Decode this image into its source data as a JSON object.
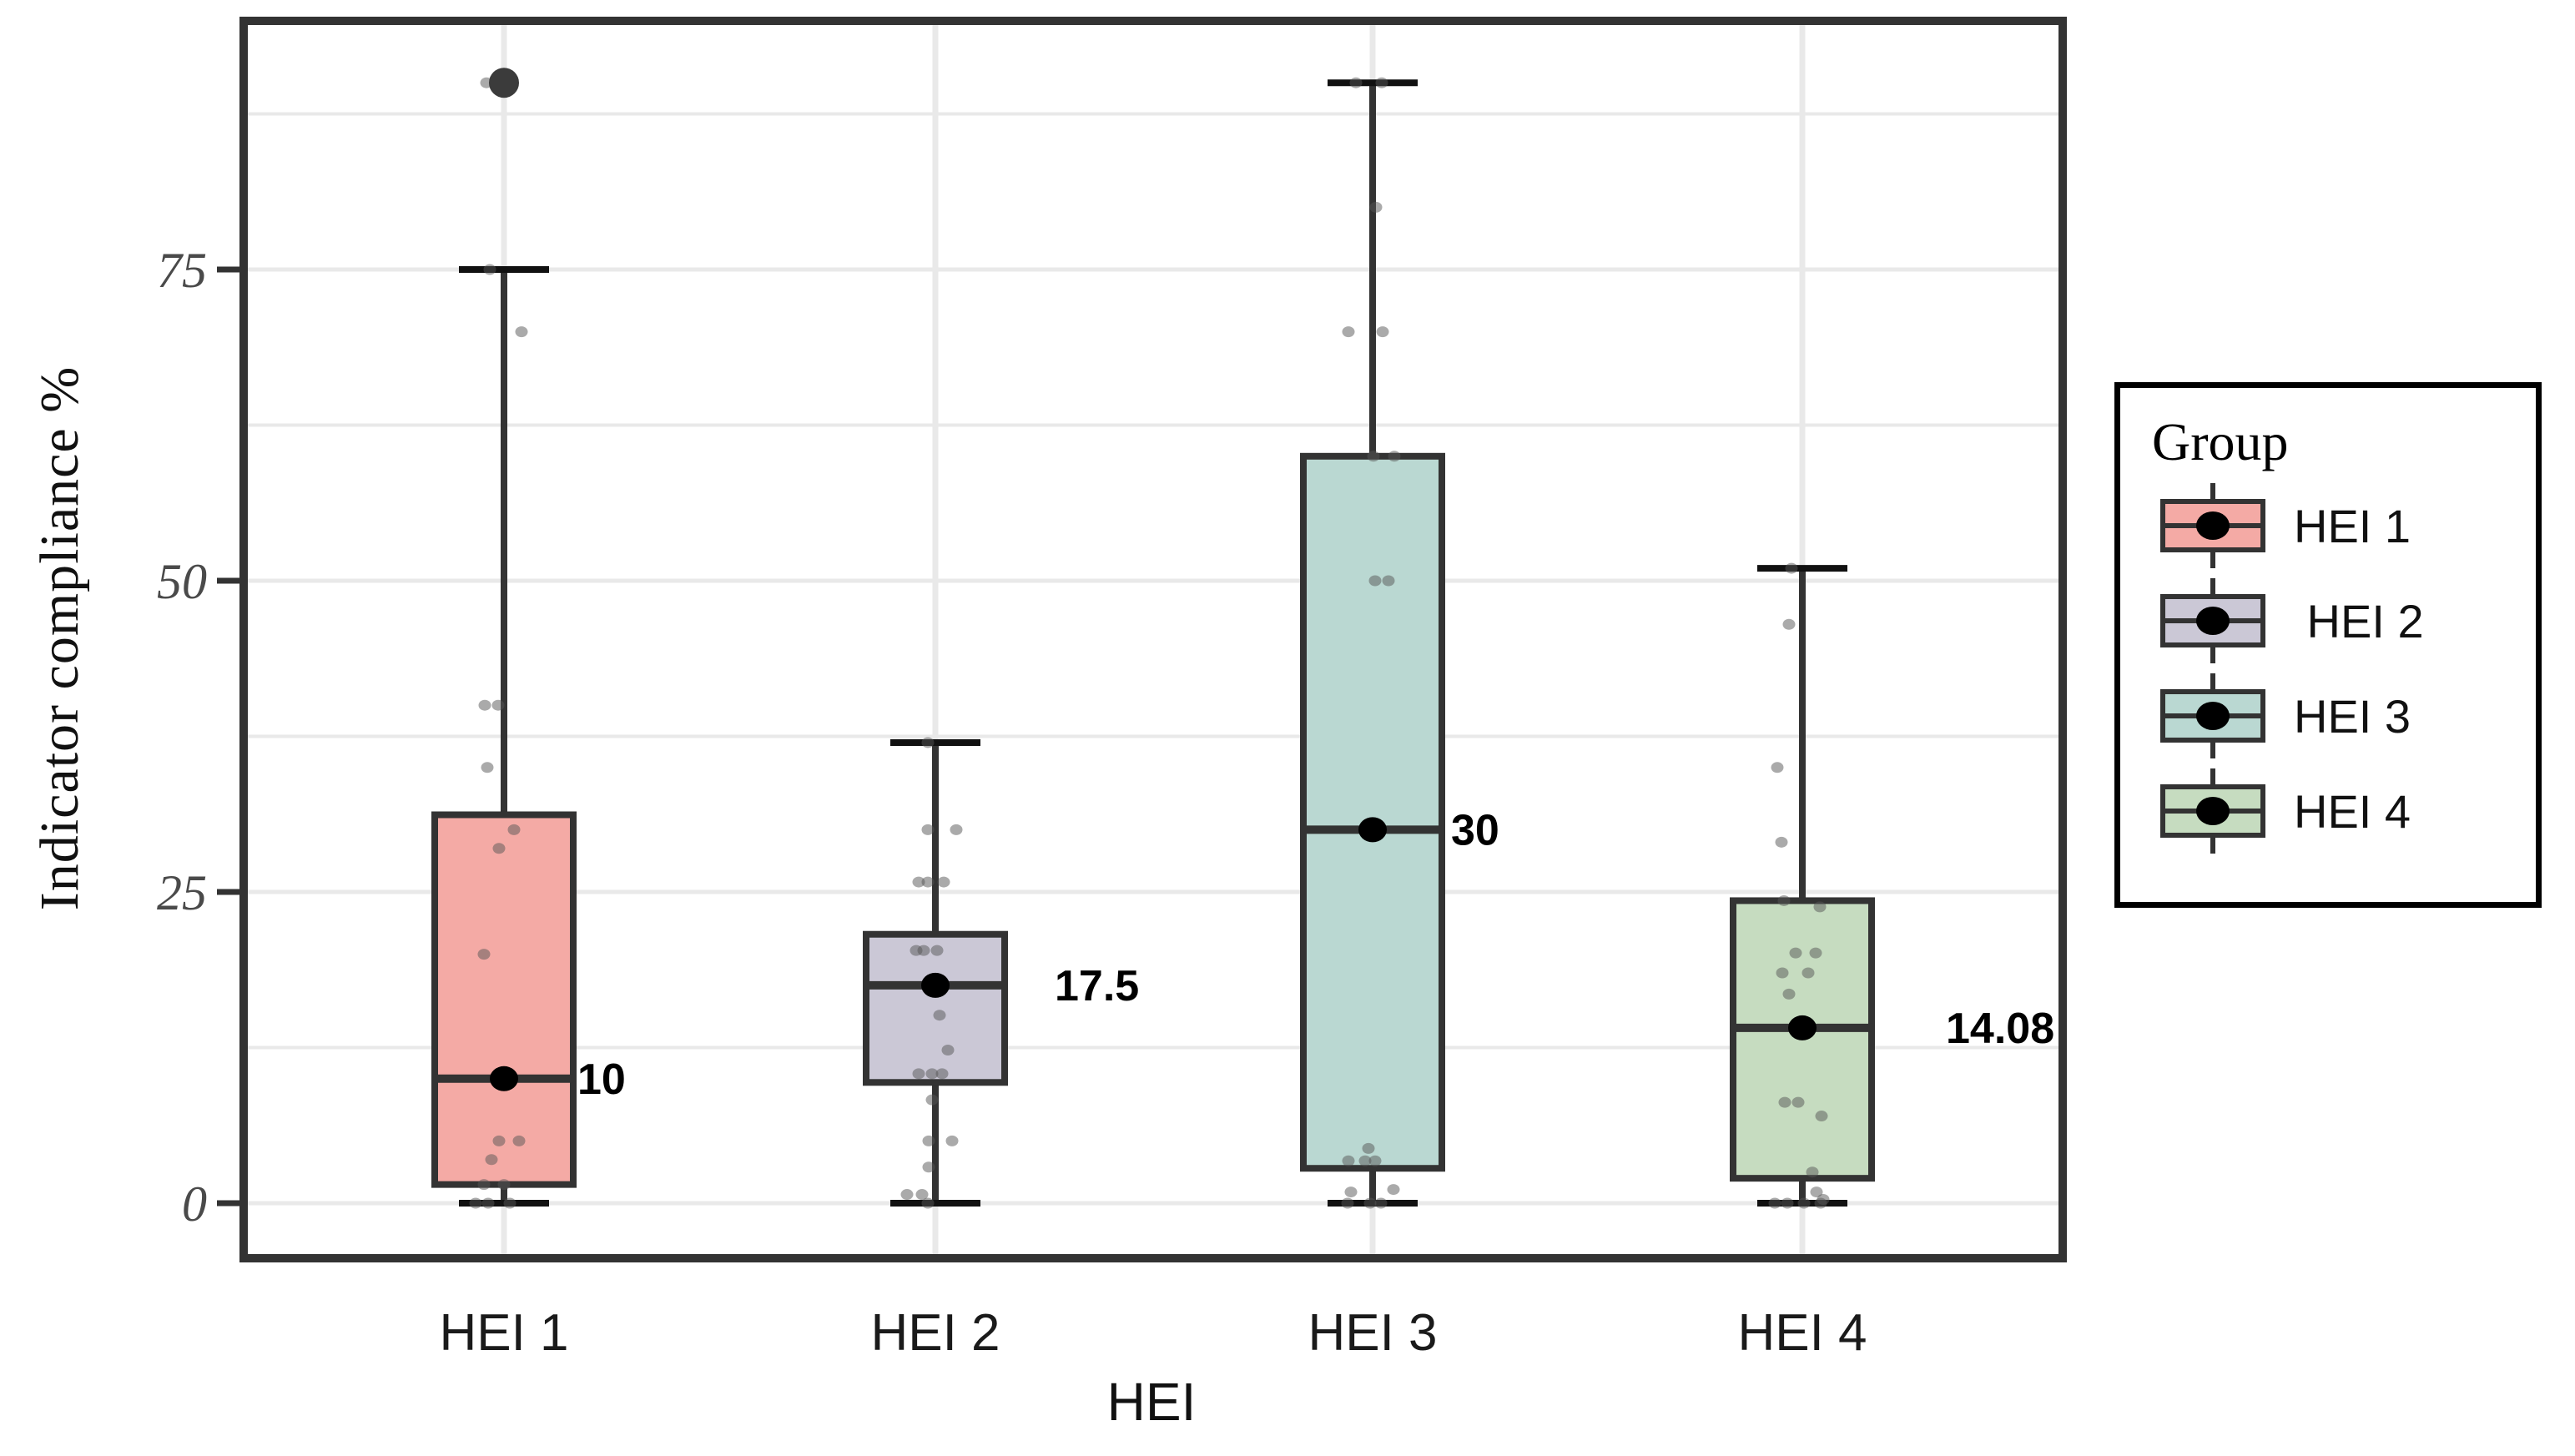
{
  "chart_data": {
    "type": "boxplot",
    "title": "",
    "xlabel": "HEI",
    "ylabel": "Indicator compliance %",
    "grid": true,
    "y_axis": {
      "ticks": [
        0,
        25,
        50,
        75
      ],
      "tick_labels": [
        "0",
        "25",
        "50",
        "75"
      ],
      "minor_gridlines": [
        12.5,
        37.5,
        62.5,
        87.5
      ],
      "range": [
        -5.2,
        95
      ]
    },
    "legend": {
      "title": "Group",
      "position": "right",
      "entries": [
        "HEI 1",
        " HEI 2",
        "HEI 3",
        "HEI 4"
      ]
    },
    "style": {
      "box_border": "#333333",
      "gridline": "#E9E9E9",
      "jitter_dot": "#555555",
      "median_dot": "#000000",
      "outlier_dot": "#3B3B3B",
      "tick_label_color": "#4A4A4A",
      "panel_border": "#333333"
    },
    "groups": [
      {
        "label": "HEI 1",
        "color": "#F4AAA5",
        "stats": {
          "whisker_low": 0,
          "q1": 1.5,
          "median": 10,
          "q3": 31.2,
          "whisker_high": 75,
          "outliers": [
            90
          ]
        },
        "median_label": "10",
        "points": [
          [
            90,
            -21
          ],
          [
            75,
            -17
          ],
          [
            70,
            21
          ],
          [
            40,
            -23
          ],
          [
            40,
            -7
          ],
          [
            35,
            -20
          ],
          [
            30,
            12
          ],
          [
            28.5,
            -6
          ],
          [
            20,
            -24
          ],
          [
            5,
            -6
          ],
          [
            5,
            18
          ],
          [
            3.5,
            -15
          ],
          [
            1.5,
            -24
          ],
          [
            1.5,
            0
          ],
          [
            0,
            -34
          ],
          [
            0,
            -19
          ],
          [
            0,
            7
          ]
        ]
      },
      {
        "label": "HEI 2",
        "color": "#CBC8D6",
        "stats": {
          "whisker_low": 0,
          "q1": 9.7,
          "median": 17.5,
          "q3": 21.6,
          "whisker_high": 37,
          "outliers": []
        },
        "median_label": "17.5",
        "points": [
          [
            37,
            -9
          ],
          [
            30,
            -9
          ],
          [
            30,
            25
          ],
          [
            25.8,
            -20
          ],
          [
            25.8,
            -9
          ],
          [
            25.8,
            10
          ],
          [
            20.3,
            -23
          ],
          [
            20.3,
            -14
          ],
          [
            20.3,
            2
          ],
          [
            15.1,
            5
          ],
          [
            12.3,
            15
          ],
          [
            10.4,
            -20
          ],
          [
            10.4,
            -4
          ],
          [
            10.4,
            8
          ],
          [
            8.3,
            -4
          ],
          [
            5,
            -8
          ],
          [
            5,
            20
          ],
          [
            2.9,
            -8
          ],
          [
            0.7,
            -34
          ],
          [
            0.7,
            -16
          ],
          [
            0,
            -9
          ]
        ]
      },
      {
        "label": "HEI 3",
        "color": "#BAD8D2",
        "stats": {
          "whisker_low": 0,
          "q1": 2.8,
          "median": 30,
          "q3": 60,
          "whisker_high": 90,
          "outliers": []
        },
        "median_label": "30",
        "points": [
          [
            90,
            -20
          ],
          [
            90,
            11
          ],
          [
            80,
            4
          ],
          [
            70,
            -29
          ],
          [
            70,
            12
          ],
          [
            60,
            1
          ],
          [
            60,
            26
          ],
          [
            50,
            3
          ],
          [
            50,
            19
          ],
          [
            4.4,
            -5
          ],
          [
            3.4,
            -29
          ],
          [
            3.4,
            -9
          ],
          [
            3.4,
            3
          ],
          [
            1.1,
            25
          ],
          [
            0.9,
            -26
          ],
          [
            0,
            -30
          ],
          [
            0,
            -3
          ],
          [
            0,
            10
          ]
        ]
      },
      {
        "label": "HEI 4",
        "color": "#C6DCC0",
        "stats": {
          "whisker_low": 0,
          "q1": 2,
          "median": 14.08,
          "q3": 24.3,
          "whisker_high": 51,
          "outliers": []
        },
        "median_label": "14.08",
        "points": [
          [
            51,
            -13
          ],
          [
            46.5,
            -16
          ],
          [
            35,
            -30
          ],
          [
            29,
            -25
          ],
          [
            24.3,
            -22
          ],
          [
            23.8,
            21
          ],
          [
            20.1,
            -8
          ],
          [
            20.1,
            16
          ],
          [
            18.5,
            -24
          ],
          [
            18.5,
            7
          ],
          [
            16.8,
            -16
          ],
          [
            14,
            9
          ],
          [
            8.1,
            -21
          ],
          [
            8.1,
            -5
          ],
          [
            7,
            23
          ],
          [
            2.5,
            12
          ],
          [
            0.9,
            17
          ],
          [
            0.3,
            25
          ],
          [
            0,
            -33
          ],
          [
            0,
            -18
          ],
          [
            0,
            2
          ],
          [
            0,
            22
          ]
        ]
      }
    ]
  }
}
